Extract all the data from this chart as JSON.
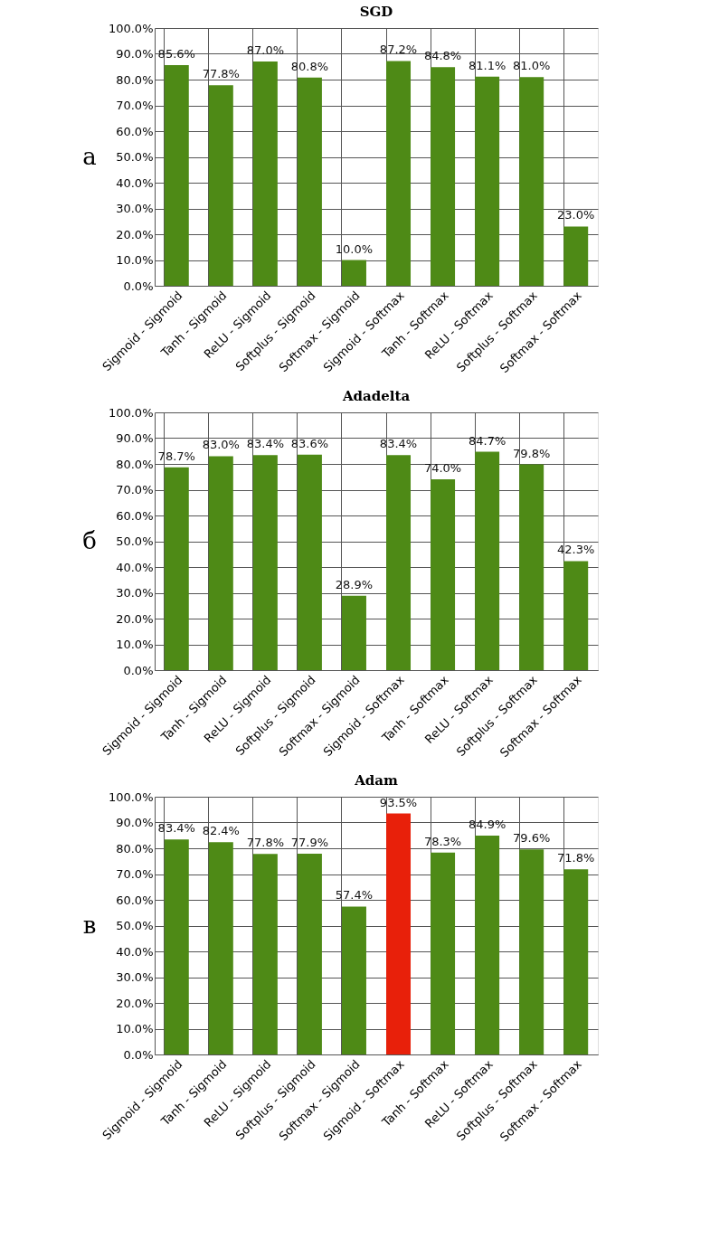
{
  "chart_data": [
    {
      "type": "bar",
      "title": "SGD",
      "annotations": [
        "а"
      ],
      "categories": [
        "Sigmoid - Sigmoid",
        "Tanh - Sigmoid",
        "ReLU - Sigmoid",
        "Softplus - Sigmoid",
        "Softmax - Sigmoid",
        "Sigmoid - Softmax",
        "Tanh - Softmax",
        "ReLU - Softmax",
        "Softplus - Softmax",
        "Softmax - Softmax"
      ],
      "values": [
        85.6,
        77.8,
        87.0,
        80.8,
        10.0,
        87.2,
        84.8,
        81.1,
        81.0,
        23.0
      ],
      "value_labels": [
        "85.6%",
        "77.8%",
        "87.0%",
        "80.8%",
        "10.0%",
        "87.2%",
        "84.8%",
        "81.1%",
        "81.0%",
        "23.0%"
      ],
      "colors": [
        "#4e8a16",
        "#4e8a16",
        "#4e8a16",
        "#4e8a16",
        "#4e8a16",
        "#4e8a16",
        "#4e8a16",
        "#4e8a16",
        "#4e8a16",
        "#4e8a16"
      ],
      "ylim": [
        0,
        100
      ],
      "yticks": [
        {
          "value": 0,
          "label": "0.0%"
        },
        {
          "value": 10,
          "label": "10.0%"
        },
        {
          "value": 20,
          "label": "20.0%"
        },
        {
          "value": 30,
          "label": "30.0%"
        },
        {
          "value": 40,
          "label": "40.0%"
        },
        {
          "value": 50,
          "label": "50.0%"
        },
        {
          "value": 60,
          "label": "60.0%"
        },
        {
          "value": 70,
          "label": "70.0%"
        },
        {
          "value": 80,
          "label": "80.0%"
        },
        {
          "value": 90,
          "label": "90.0%"
        },
        {
          "value": 100,
          "label": "100.0%"
        }
      ],
      "grid": true
    },
    {
      "type": "bar",
      "title": "Adadelta",
      "annotations": [
        "б"
      ],
      "categories": [
        "Sigmoid - Sigmoid",
        "Tanh - Sigmoid",
        "ReLU - Sigmoid",
        "Softplus - Sigmoid",
        "Softmax - Sigmoid",
        "Sigmoid - Softmax",
        "Tanh - Softmax",
        "ReLU - Softmax",
        "Softplus - Softmax",
        "Softmax - Softmax"
      ],
      "values": [
        78.7,
        83.0,
        83.4,
        83.6,
        28.9,
        83.4,
        74.0,
        84.7,
        79.8,
        42.3
      ],
      "value_labels": [
        "78.7%",
        "83.0%",
        "83.4%",
        "83.6%",
        "28.9%",
        "83.4%",
        "74.0%",
        "84.7%",
        "79.8%",
        "42.3%"
      ],
      "colors": [
        "#4e8a16",
        "#4e8a16",
        "#4e8a16",
        "#4e8a16",
        "#4e8a16",
        "#4e8a16",
        "#4e8a16",
        "#4e8a16",
        "#4e8a16",
        "#4e8a16"
      ],
      "ylim": [
        0,
        100
      ],
      "yticks": [
        {
          "value": 0,
          "label": "0.0%"
        },
        {
          "value": 10,
          "label": "10.0%"
        },
        {
          "value": 20,
          "label": "20.0%"
        },
        {
          "value": 30,
          "label": "30.0%"
        },
        {
          "value": 40,
          "label": "40.0%"
        },
        {
          "value": 50,
          "label": "50.0%"
        },
        {
          "value": 60,
          "label": "60.0%"
        },
        {
          "value": 70,
          "label": "70.0%"
        },
        {
          "value": 80,
          "label": "80.0%"
        },
        {
          "value": 90,
          "label": "90.0%"
        },
        {
          "value": 100,
          "label": "100.0%"
        }
      ],
      "grid": true
    },
    {
      "type": "bar",
      "title": "Adam",
      "annotations": [
        "в"
      ],
      "categories": [
        "Sigmoid - Sigmoid",
        "Tanh - Sigmoid",
        "ReLU - Sigmoid",
        "Softplus - Sigmoid",
        "Softmax - Sigmoid",
        "Sigmoid - Softmax",
        "Tanh - Softmax",
        "ReLU - Softmax",
        "Softplus - Softmax",
        "Softmax - Softmax"
      ],
      "values": [
        83.4,
        82.4,
        77.8,
        77.9,
        57.4,
        93.5,
        78.3,
        84.9,
        79.6,
        71.8
      ],
      "value_labels": [
        "83.4%",
        "82.4%",
        "77.8%",
        "77.9%",
        "57.4%",
        "93.5%",
        "78.3%",
        "84.9%",
        "79.6%",
        "71.8%"
      ],
      "colors": [
        "#4e8a16",
        "#4e8a16",
        "#4e8a16",
        "#4e8a16",
        "#4e8a16",
        "#e8200a",
        "#4e8a16",
        "#4e8a16",
        "#4e8a16",
        "#4e8a16"
      ],
      "ylim": [
        0,
        100
      ],
      "yticks": [
        {
          "value": 0,
          "label": "0.0%"
        },
        {
          "value": 10,
          "label": "10.0%"
        },
        {
          "value": 20,
          "label": "20.0%"
        },
        {
          "value": 30,
          "label": "30.0%"
        },
        {
          "value": 40,
          "label": "40.0%"
        },
        {
          "value": 50,
          "label": "50.0%"
        },
        {
          "value": 60,
          "label": "60.0%"
        },
        {
          "value": 70,
          "label": "70.0%"
        },
        {
          "value": 80,
          "label": "80.0%"
        },
        {
          "value": 90,
          "label": "90.0%"
        },
        {
          "value": 100,
          "label": "100.0%"
        }
      ],
      "grid": true
    }
  ]
}
